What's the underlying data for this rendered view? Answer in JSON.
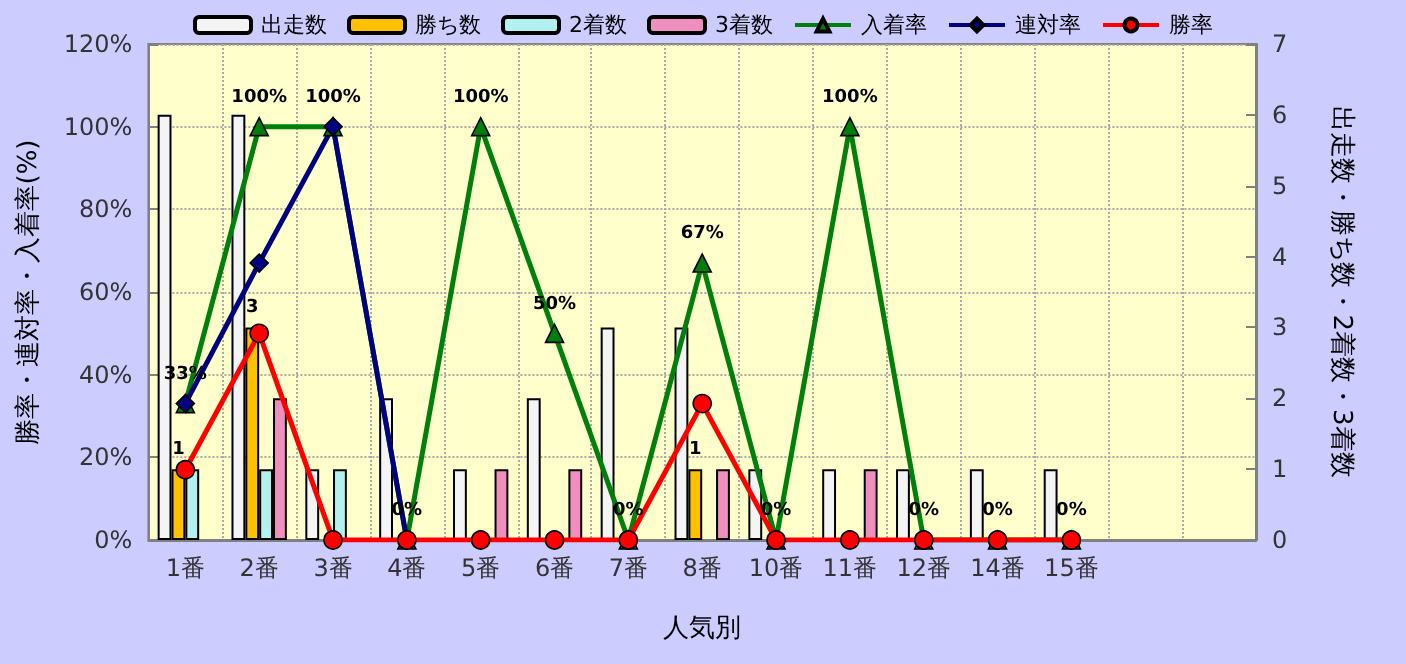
{
  "chart_data": {
    "type": "bar",
    "xlabel": "人気別",
    "ylabel": "勝率・連対率・入着率(%)",
    "y2label": "出走数・勝ち数・2着数・3着数",
    "categories": [
      "1番",
      "2番",
      "3番",
      "4番",
      "5番",
      "6番",
      "7番",
      "8番",
      "10番",
      "11番",
      "12番",
      "14番",
      "15番",
      null,
      null
    ],
    "series": [
      {
        "name": "出走数",
        "axis": "y2",
        "color": "#f4f4f4",
        "values": [
          6,
          6,
          1,
          2,
          1,
          2,
          3,
          3,
          1,
          1,
          1,
          1,
          1,
          null,
          null
        ]
      },
      {
        "name": "勝ち数",
        "axis": "y2",
        "color": "#ffc000",
        "values": [
          1,
          3,
          0,
          0,
          0,
          0,
          0,
          1,
          0,
          0,
          0,
          0,
          0,
          null,
          null
        ],
        "value_labels": [
          "1",
          "3",
          null,
          null,
          null,
          null,
          null,
          "1",
          null,
          null,
          null,
          null,
          null,
          null,
          null
        ]
      },
      {
        "name": "2着数",
        "axis": "y2",
        "color": "#b3f0f0",
        "values": [
          1,
          1,
          1,
          0,
          0,
          0,
          0,
          0,
          0,
          0,
          0,
          0,
          0,
          null,
          null
        ]
      },
      {
        "name": "3着数",
        "axis": "y2",
        "color": "#ef8fbf",
        "values": [
          0,
          2,
          0,
          0,
          1,
          1,
          0,
          1,
          0,
          1,
          0,
          0,
          0,
          null,
          null
        ]
      },
      {
        "name": "入着率",
        "type": "line",
        "marker": "triangle",
        "color": "#00800a",
        "values": [
          33,
          100,
          100,
          0,
          100,
          50,
          0,
          67,
          0,
          100,
          0,
          0,
          0,
          null,
          null
        ],
        "value_labels": [
          "33%",
          "100%",
          "100%",
          "0%",
          "100%",
          "50%",
          "0%",
          "67%",
          "0%",
          "100%",
          "0%",
          "0%",
          "0%",
          null,
          null
        ]
      },
      {
        "name": "連対率",
        "type": "line",
        "marker": "diamond",
        "color": "#000080",
        "values": [
          33,
          67,
          100,
          0,
          null,
          null,
          null,
          null,
          null,
          null,
          null,
          null,
          null,
          null,
          null
        ]
      },
      {
        "name": "勝率",
        "type": "line",
        "marker": "circle",
        "color": "#ff0000",
        "values": [
          17,
          50,
          0,
          0,
          0,
          0,
          0,
          33,
          0,
          0,
          0,
          0,
          0,
          null,
          null
        ]
      }
    ],
    "ylim": [
      0,
      120
    ],
    "yticks": [
      {
        "value": 0,
        "label": "0%"
      },
      {
        "value": 20,
        "label": "20%"
      },
      {
        "value": 40,
        "label": "40%"
      },
      {
        "value": 60,
        "label": "60%"
      },
      {
        "value": 80,
        "label": "80%"
      },
      {
        "value": 100,
        "label": "100%"
      },
      {
        "value": 120,
        "label": "120%"
      }
    ],
    "y2lim": [
      0,
      7
    ],
    "y2ticks": [
      0,
      1,
      2,
      3,
      4,
      5,
      6,
      7
    ],
    "grid": true,
    "legend": "top"
  }
}
